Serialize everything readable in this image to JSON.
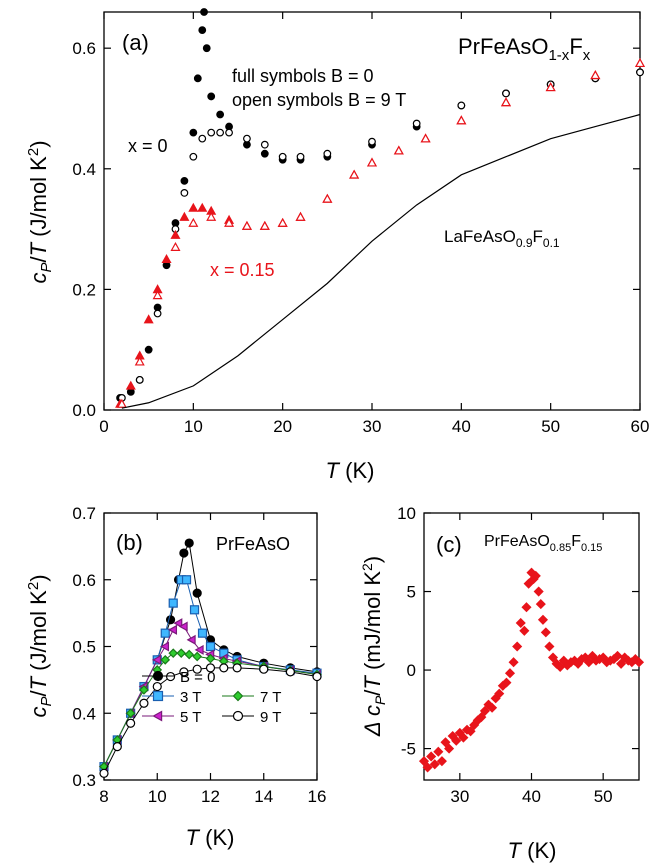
{
  "chart_data": [
    {
      "panel": "a",
      "type": "scatter",
      "panel_label": "(a)",
      "title": {
        "base": "PrFeAsO",
        "sub": "1-x",
        "base2": "F",
        "sub2": "x"
      },
      "xlabel": "T (K)",
      "ylabel": "cP/T (J/mol K2)",
      "xlim": [
        0,
        60
      ],
      "ylim": [
        0,
        0.66
      ],
      "xticks": [
        "0",
        "10",
        "20",
        "30",
        "40",
        "50",
        "60"
      ],
      "yticks": [
        "0.0",
        "0.2",
        "0.4",
        "0.6"
      ],
      "legend_lines": [
        "full symbols B = 0",
        "open symbols B = 9 T"
      ],
      "annotations": {
        "x0": "x = 0",
        "x015": "x = 0.15",
        "ref": {
          "base": "LaFeAsO",
          "sub": "0.9",
          "base2": "F",
          "sub2": "0.1"
        }
      },
      "colors": {
        "x0": "#000000",
        "x015": "#e8141b",
        "ref": "#000000"
      },
      "series": [
        {
          "name": "x = 0, B = 0",
          "marker": "circle-filled",
          "color": "#000000",
          "x": [
            1.8,
            3,
            4,
            5,
            6,
            7,
            8,
            9,
            10,
            10.5,
            11,
            11.2,
            11.5,
            12,
            13,
            14,
            16,
            18,
            20,
            22,
            25,
            30,
            35,
            40,
            45,
            50,
            55,
            60
          ],
          "y": [
            0.02,
            0.03,
            0.05,
            0.1,
            0.17,
            0.24,
            0.31,
            0.38,
            0.46,
            0.55,
            0.63,
            0.66,
            0.6,
            0.52,
            0.49,
            0.47,
            0.44,
            0.425,
            0.415,
            0.415,
            0.42,
            0.44,
            0.47,
            0.505,
            0.525,
            0.54,
            0.55,
            0.56
          ]
        },
        {
          "name": "x = 0, B = 9 T",
          "marker": "circle-open",
          "color": "#000000",
          "x": [
            2,
            4,
            6,
            8,
            9,
            10,
            11,
            12,
            13,
            14,
            16,
            18,
            20,
            22,
            25,
            30,
            35,
            40,
            45,
            50,
            55,
            60
          ],
          "y": [
            0.02,
            0.05,
            0.16,
            0.3,
            0.36,
            0.42,
            0.45,
            0.46,
            0.46,
            0.46,
            0.45,
            0.44,
            0.42,
            0.42,
            0.425,
            0.445,
            0.475,
            0.505,
            0.525,
            0.54,
            0.55,
            0.56
          ]
        },
        {
          "name": "x = 0.15, B = 0",
          "marker": "triangle-filled",
          "color": "#e8141b",
          "x": [
            1.8,
            3,
            4,
            5,
            6,
            7,
            8,
            9,
            10,
            11,
            12,
            14,
            16,
            18,
            20,
            22,
            25,
            28,
            30,
            33,
            36,
            40,
            45,
            50,
            55,
            60
          ],
          "y": [
            0.01,
            0.04,
            0.09,
            0.15,
            0.2,
            0.25,
            0.29,
            0.32,
            0.335,
            0.335,
            0.33,
            0.315,
            0.305,
            0.305,
            0.31,
            0.32,
            0.35,
            0.39,
            0.41,
            0.43,
            0.45,
            0.48,
            0.51,
            0.535,
            0.555,
            0.575
          ]
        },
        {
          "name": "x = 0.15, B = 9 T",
          "marker": "triangle-open",
          "color": "#e8141b",
          "x": [
            2,
            4,
            6,
            8,
            10,
            12,
            14,
            16,
            18,
            20,
            22,
            25,
            28,
            30,
            33,
            36,
            40,
            45,
            50,
            55,
            60
          ],
          "y": [
            0.01,
            0.08,
            0.19,
            0.27,
            0.31,
            0.32,
            0.31,
            0.305,
            0.305,
            0.31,
            0.32,
            0.35,
            0.39,
            0.41,
            0.43,
            0.45,
            0.48,
            0.51,
            0.535,
            0.555,
            0.575
          ]
        },
        {
          "name": "LaFeAsO0.9F0.1",
          "marker": "line",
          "color": "#000000",
          "x": [
            2,
            5,
            10,
            15,
            20,
            25,
            30,
            35,
            40,
            45,
            50,
            55,
            60
          ],
          "y": [
            0.003,
            0.012,
            0.04,
            0.09,
            0.15,
            0.21,
            0.28,
            0.34,
            0.39,
            0.42,
            0.45,
            0.47,
            0.49
          ]
        }
      ]
    },
    {
      "panel": "b",
      "type": "line",
      "panel_label": "(b)",
      "title": "PrFeAsO",
      "xlabel": "T (K)",
      "ylabel": "cP/T (J/mol K2)",
      "xlim": [
        8,
        16
      ],
      "ylim": [
        0.3,
        0.7
      ],
      "xticks": [
        "8",
        "10",
        "12",
        "14",
        "16"
      ],
      "yticks": [
        "0.3",
        "0.4",
        "0.5",
        "0.6",
        "0.7"
      ],
      "series": [
        {
          "name": "B = 0",
          "legend": "B = 0",
          "marker": "circle-filled",
          "fill": "#000000",
          "stroke": "#000000",
          "x": [
            8,
            8.5,
            9,
            9.5,
            10,
            10.5,
            10.8,
            11,
            11.2,
            11.5,
            12,
            12.5,
            13,
            14,
            15,
            16
          ],
          "y": [
            0.32,
            0.36,
            0.4,
            0.44,
            0.48,
            0.54,
            0.6,
            0.64,
            0.655,
            0.58,
            0.51,
            0.495,
            0.485,
            0.475,
            0.468,
            0.462
          ]
        },
        {
          "name": "3 T",
          "legend": "3 T",
          "marker": "square",
          "fill": "#3fb7ff",
          "stroke": "#1a5fb0",
          "x": [
            8,
            8.5,
            9,
            9.5,
            10,
            10.3,
            10.6,
            10.9,
            11.1,
            11.4,
            11.7,
            12,
            12.5,
            13,
            14,
            15,
            16
          ],
          "y": [
            0.32,
            0.36,
            0.4,
            0.44,
            0.48,
            0.52,
            0.565,
            0.6,
            0.6,
            0.555,
            0.52,
            0.5,
            0.49,
            0.48,
            0.47,
            0.465,
            0.46
          ]
        },
        {
          "name": "5 T",
          "legend": "5 T",
          "marker": "triangle-left",
          "fill": "#cc22cc",
          "stroke": "#7a1a7a",
          "x": [
            8,
            8.5,
            9,
            9.5,
            10,
            10.3,
            10.6,
            10.8,
            11,
            11.3,
            11.6,
            12,
            12.5,
            13,
            14,
            15,
            16
          ],
          "y": [
            0.32,
            0.36,
            0.4,
            0.44,
            0.48,
            0.5,
            0.525,
            0.535,
            0.53,
            0.51,
            0.495,
            0.488,
            0.482,
            0.478,
            0.47,
            0.464,
            0.458
          ]
        },
        {
          "name": "7 T",
          "legend": "7 T",
          "marker": "diamond",
          "fill": "#2ecc2e",
          "stroke": "#1a7a1a",
          "x": [
            8,
            8.5,
            9,
            9.5,
            10,
            10.3,
            10.6,
            10.9,
            11.2,
            11.5,
            12,
            12.5,
            13,
            14,
            15,
            16
          ],
          "y": [
            0.32,
            0.36,
            0.4,
            0.435,
            0.465,
            0.48,
            0.49,
            0.49,
            0.488,
            0.485,
            0.482,
            0.478,
            0.475,
            0.47,
            0.464,
            0.458
          ]
        },
        {
          "name": "9 T",
          "legend": "9 T",
          "marker": "circle-open",
          "fill": "#ffffff",
          "stroke": "#000000",
          "x": [
            8,
            8.5,
            9,
            9.5,
            10,
            10.5,
            11,
            11.5,
            12,
            12.5,
            13,
            14,
            15,
            16
          ],
          "y": [
            0.31,
            0.35,
            0.385,
            0.415,
            0.44,
            0.455,
            0.462,
            0.466,
            0.468,
            0.468,
            0.468,
            0.466,
            0.462,
            0.455
          ]
        }
      ]
    },
    {
      "panel": "c",
      "type": "scatter",
      "panel_label": "(c)",
      "title": {
        "base": "PrFeAsO",
        "sub": "0.85",
        "base2": "F",
        "sub2": "0.15"
      },
      "xlabel": "T (K)",
      "ylabel": "Δ cP/T (mJ/mol K2)",
      "xlim": [
        25,
        55
      ],
      "ylim": [
        -7,
        10
      ],
      "xticks": [
        "30",
        "40",
        "50"
      ],
      "yticks": [
        "-5",
        "0",
        "5",
        "10"
      ],
      "color": "#e8141b",
      "series": [
        {
          "name": "PrFeAsO0.85F0.15",
          "marker": "diamond-filled",
          "x": [
            25,
            25.5,
            26,
            26.5,
            27,
            27.5,
            28,
            28.5,
            29,
            29.5,
            30,
            30.5,
            31,
            31.5,
            32,
            32.5,
            33,
            33.5,
            34,
            34.5,
            35,
            35.5,
            36,
            36.5,
            37,
            37.5,
            38,
            38.5,
            39,
            39.3,
            39.6,
            40,
            40.3,
            40.6,
            41,
            41.3,
            41.6,
            42,
            42.5,
            43,
            43.5,
            44,
            44.5,
            45,
            45.5,
            46,
            46.5,
            47,
            47.5,
            48,
            48.5,
            49,
            49.5,
            50,
            50.5,
            51,
            51.5,
            52,
            52.5,
            53,
            53.5,
            54,
            54.5,
            55
          ],
          "y": [
            -5.8,
            -6.2,
            -5.5,
            -6.0,
            -5.2,
            -5.8,
            -4.6,
            -5.0,
            -4.2,
            -4.5,
            -4.0,
            -4.3,
            -3.8,
            -3.9,
            -3.5,
            -3.2,
            -3.0,
            -2.6,
            -2.2,
            -2.4,
            -1.8,
            -1.5,
            -1.0,
            -0.8,
            -0.2,
            0.5,
            1.5,
            3.0,
            2.5,
            4.0,
            5.5,
            6.2,
            5.8,
            6.0,
            5.0,
            4.2,
            3.2,
            2.4,
            1.5,
            0.8,
            0.4,
            0.2,
            0.6,
            0.3,
            0.5,
            0.6,
            0.4,
            0.7,
            0.8,
            0.5,
            0.9,
            0.6,
            0.7,
            0.8,
            0.5,
            0.6,
            0.7,
            0.9,
            0.4,
            0.8,
            0.6,
            0.5,
            0.7,
            0.5
          ]
        }
      ]
    }
  ]
}
